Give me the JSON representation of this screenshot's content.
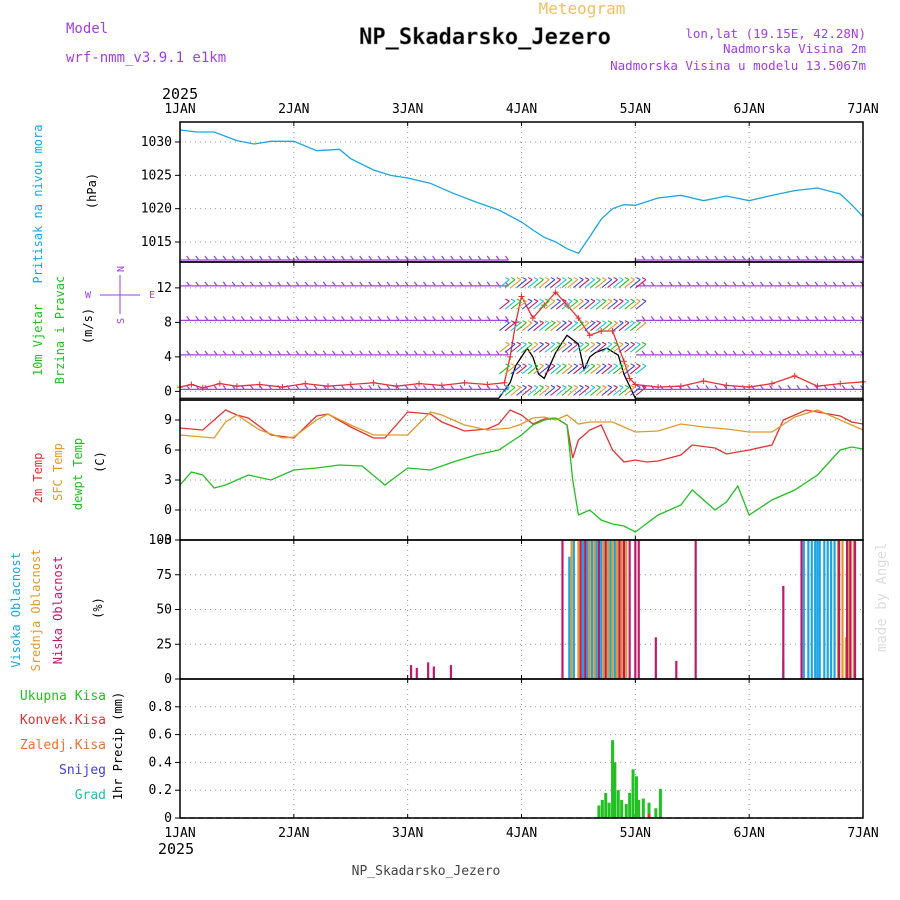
{
  "header": {
    "subtitle": "Meteogram",
    "title": "NP_Skadarsko_Jezero",
    "model_label": "Model",
    "model_name": "wrf-nmm_v3.9.1 e1km",
    "location_lonlat": "lon,lat (19.15E, 42.28N)",
    "elevation": "Nadmorska Visina 2m",
    "model_elevation": "Nadmorska Visina u modelu 13.5067m",
    "year_top": "2025",
    "year_bottom": "2025",
    "footer": "NP_Skadarsko_Jezero",
    "credit": "made by Angel"
  },
  "colors": {
    "pressure": "#1aa6e6",
    "wind_speed": "#000000",
    "gust": "#e63232",
    "temp2m": "#e63232",
    "sfc_temp": "#e09a28",
    "dewpoint": "#22c022",
    "cloud_high": "#1aa6e6",
    "cloud_mid": "#e09a28",
    "cloud_low": "#c0186a",
    "precip_total": "#22c022",
    "precip_conv": "#e63232",
    "precip_frozen": "#f07030",
    "snow": "#4040e0",
    "hail": "#20c0b0",
    "purple": "#a040e0"
  },
  "chart_data": [
    {
      "type": "line",
      "panel": "pressure",
      "ylabel": [
        "Pritisak na nivou mora",
        "(hPa)"
      ],
      "x_ticks": [
        "1JAN",
        "2JAN",
        "3JAN",
        "4JAN",
        "5JAN",
        "6JAN",
        "7JAN"
      ],
      "ylim": [
        1012,
        1033
      ],
      "y_ticks": [
        1015,
        1020,
        1025,
        1030
      ],
      "grid": true,
      "series": [
        {
          "x": [
            0,
            0.15,
            0.3,
            0.5,
            0.65,
            0.8,
            1.0,
            1.2,
            1.4,
            1.5,
            1.7,
            1.85,
            2.0,
            2.2,
            2.4,
            2.6,
            2.8,
            3.0,
            3.1,
            3.2,
            3.3,
            3.4,
            3.5,
            3.6,
            3.7,
            3.8,
            3.9,
            4.0,
            4.2,
            4.4,
            4.6,
            4.8,
            5.0,
            5.2,
            5.4,
            5.6,
            5.8,
            5.9,
            6.0
          ],
          "y": [
            1031.8,
            1031.5,
            1031.5,
            1030.2,
            1029.7,
            1030.1,
            1030.1,
            1028.7,
            1028.9,
            1027.5,
            1025.8,
            1025.0,
            1024.6,
            1023.8,
            1022.3,
            1021.0,
            1019.8,
            1018.0,
            1016.8,
            1015.7,
            1015.0,
            1014.0,
            1013.3,
            1015.8,
            1018.4,
            1020.0,
            1020.6,
            1020.5,
            1021.6,
            1022.0,
            1021.2,
            1021.9,
            1021.2,
            1022.0,
            1022.7,
            1023.1,
            1022.2,
            1020.6,
            1018.8
          ]
        }
      ]
    },
    {
      "type": "line",
      "panel": "wind",
      "ylabel": [
        "10m Vjetar",
        "Brzina i Pravac",
        "(m/s)"
      ],
      "compass": [
        "N",
        "S",
        "E",
        "W"
      ],
      "ylim": [
        -1,
        15
      ],
      "y_ticks": [
        0,
        4,
        8,
        12
      ],
      "grid": true,
      "series": [
        {
          "name": "wind_speed",
          "x": [
            0,
            0.5,
            1.0,
            1.5,
            2.0,
            2.5,
            2.8,
            2.9,
            2.95,
            3.0,
            3.05,
            3.1,
            3.15,
            3.2,
            3.3,
            3.4,
            3.5,
            3.55,
            3.6,
            3.65,
            3.75,
            3.85,
            3.9,
            4.0,
            4.5,
            5.0,
            5.5,
            6.0
          ],
          "y": [
            -0.8,
            -0.8,
            -0.8,
            -0.8,
            -0.8,
            -0.8,
            -0.8,
            1.0,
            3.0,
            4.0,
            5.0,
            4.0,
            2.0,
            1.5,
            4.5,
            6.5,
            5.5,
            2.5,
            4.0,
            4.5,
            5.0,
            4.2,
            2.0,
            -0.8,
            -0.8,
            -0.8,
            -0.8,
            -0.8
          ]
        },
        {
          "name": "gust",
          "x": [
            0,
            0.1,
            0.2,
            0.35,
            0.5,
            0.7,
            0.9,
            1.1,
            1.3,
            1.5,
            1.7,
            1.9,
            2.1,
            2.3,
            2.5,
            2.7,
            2.85,
            2.9,
            2.95,
            3.0,
            3.1,
            3.2,
            3.3,
            3.4,
            3.5,
            3.6,
            3.7,
            3.8,
            3.9,
            3.95,
            4.0,
            4.2,
            4.4,
            4.6,
            4.8,
            5.0,
            5.2,
            5.4,
            5.6,
            5.8,
            6.0
          ],
          "y": [
            0.5,
            0.8,
            0.4,
            0.9,
            0.6,
            0.8,
            0.5,
            0.9,
            0.6,
            0.8,
            1.0,
            0.6,
            0.9,
            0.7,
            1.0,
            0.8,
            1.0,
            4.0,
            8.0,
            11.0,
            8.5,
            10.0,
            11.5,
            10.0,
            8.5,
            6.5,
            7.0,
            7.0,
            3.5,
            1.5,
            0.8,
            0.5,
            0.6,
            1.2,
            0.7,
            0.5,
            0.9,
            1.8,
            0.6,
            0.9,
            1.1
          ]
        }
      ]
    },
    {
      "type": "line",
      "panel": "temperature",
      "ylabel": [
        "2m Temp",
        "SFC Temp",
        "dewpt Temp",
        "(C)"
      ],
      "ylim": [
        -3,
        11
      ],
      "y_ticks": [
        -3,
        0,
        3,
        6,
        9
      ],
      "grid": true,
      "series": [
        {
          "name": "2m Temp",
          "x": [
            0,
            0.2,
            0.4,
            0.5,
            0.6,
            0.8,
            1.0,
            1.2,
            1.3,
            1.5,
            1.7,
            1.8,
            2.0,
            2.2,
            2.3,
            2.5,
            2.7,
            2.8,
            2.9,
            3.0,
            3.1,
            3.2,
            3.3,
            3.4,
            3.45,
            3.5,
            3.6,
            3.7,
            3.8,
            3.9,
            4.0,
            4.1,
            4.2,
            4.4,
            4.5,
            4.7,
            4.8,
            5.0,
            5.2,
            5.3,
            5.5,
            5.7,
            5.8,
            5.9,
            6.0
          ],
          "y": [
            8.2,
            8.0,
            10.0,
            9.5,
            9.2,
            7.5,
            7.2,
            9.4,
            9.6,
            8.3,
            7.2,
            7.2,
            9.8,
            9.6,
            8.8,
            7.9,
            8.1,
            8.6,
            10.0,
            9.5,
            8.6,
            9.1,
            9.2,
            8.5,
            5.2,
            7.0,
            8.0,
            8.5,
            6.0,
            4.8,
            5.0,
            4.8,
            4.9,
            5.5,
            6.5,
            6.2,
            5.6,
            6.0,
            6.5,
            9.0,
            10.0,
            9.6,
            9.4,
            8.8,
            8.6
          ]
        },
        {
          "name": "SFC Temp",
          "x": [
            0,
            0.3,
            0.4,
            0.5,
            0.7,
            0.9,
            1.0,
            1.2,
            1.3,
            1.5,
            1.7,
            2.0,
            2.2,
            2.3,
            2.5,
            2.7,
            2.9,
            3.0,
            3.1,
            3.2,
            3.3,
            3.4,
            3.5,
            3.6,
            3.8,
            4.0,
            4.2,
            4.4,
            4.6,
            4.8,
            5.0,
            5.2,
            5.4,
            5.6,
            5.8,
            6.0
          ],
          "y": [
            7.5,
            7.2,
            8.8,
            9.5,
            8.0,
            7.2,
            7.3,
            9.0,
            9.6,
            8.5,
            7.5,
            7.5,
            9.8,
            9.5,
            8.5,
            8.0,
            8.2,
            8.6,
            9.2,
            9.3,
            9.0,
            9.5,
            8.6,
            8.8,
            8.8,
            7.8,
            7.9,
            8.6,
            8.3,
            8.1,
            7.8,
            7.8,
            9.3,
            10.0,
            9.0,
            8.0
          ]
        },
        {
          "name": "dewpt Temp",
          "x": [
            0,
            0.1,
            0.2,
            0.3,
            0.4,
            0.6,
            0.8,
            1.0,
            1.2,
            1.4,
            1.6,
            1.8,
            2.0,
            2.2,
            2.4,
            2.6,
            2.8,
            3.0,
            3.1,
            3.2,
            3.3,
            3.4,
            3.45,
            3.5,
            3.6,
            3.7,
            3.8,
            3.9,
            4.0,
            4.2,
            4.4,
            4.5,
            4.7,
            4.8,
            4.9,
            5.0,
            5.2,
            5.4,
            5.6,
            5.8,
            5.9,
            6.0
          ],
          "y": [
            2.5,
            3.8,
            3.5,
            2.2,
            2.5,
            3.5,
            3.0,
            4.0,
            4.2,
            4.5,
            4.4,
            2.5,
            4.2,
            4.0,
            4.8,
            5.5,
            6.0,
            7.5,
            8.5,
            9.0,
            9.2,
            8.5,
            3.0,
            -0.5,
            0.0,
            -1.0,
            -1.4,
            -1.6,
            -2.2,
            -0.5,
            0.5,
            2.0,
            0.0,
            0.8,
            2.4,
            -0.5,
            1.0,
            2.0,
            3.5,
            6.0,
            6.3,
            6.1
          ]
        }
      ]
    },
    {
      "type": "bar",
      "panel": "cloud",
      "ylabel": [
        "Visoka Oblacnost",
        "Srednja Oblacnost",
        "Niska Oblacnost",
        "(%)"
      ],
      "ylim": [
        0,
        100
      ],
      "y_ticks": [
        0,
        25,
        50,
        75,
        100
      ],
      "grid": true,
      "series": [
        {
          "name": "Visoka Oblacnost",
          "x": [
            3.42,
            3.46,
            3.54,
            3.58,
            3.62,
            3.66,
            3.7,
            3.78,
            3.82,
            5.3,
            5.48,
            5.52,
            5.55,
            5.58,
            5.6,
            5.62,
            5.66,
            5.69,
            5.72,
            5.75
          ],
          "values": [
            88,
            100,
            100,
            100,
            100,
            100,
            100,
            100,
            100,
            14,
            100,
            100,
            100,
            100,
            100,
            100,
            100,
            100,
            100,
            100
          ]
        },
        {
          "name": "Srednja Oblacnost",
          "x": [
            3.44,
            3.5,
            3.56,
            3.6,
            3.64,
            3.68,
            3.72,
            3.76,
            3.8,
            3.84,
            3.88,
            3.92,
            5.78,
            5.82,
            5.85,
            5.88,
            5.92
          ],
          "values": [
            100,
            100,
            100,
            100,
            100,
            100,
            100,
            100,
            100,
            100,
            100,
            100,
            100,
            100,
            30,
            100,
            100
          ]
        },
        {
          "name": "Niska Oblacnost",
          "x": [
            2.03,
            2.08,
            2.18,
            2.23,
            2.38,
            3.36,
            3.52,
            3.56,
            3.68,
            3.74,
            3.86,
            3.9,
            3.95,
            4.0,
            4.03,
            4.18,
            4.36,
            4.53,
            5.3,
            5.46,
            5.79,
            5.86,
            5.89,
            5.93
          ],
          "values": [
            10,
            8,
            12,
            9,
            10,
            100,
            100,
            100,
            100,
            100,
            100,
            100,
            100,
            100,
            100,
            30,
            13,
            100,
            67,
            100,
            100,
            100,
            100,
            100
          ]
        }
      ]
    },
    {
      "type": "bar",
      "panel": "precip",
      "ylabel": [
        "1hr Precip (mm)"
      ],
      "legend": [
        "Ukupna Kisa",
        "Konvek.Kisa",
        "Zaledj.Kisa",
        "Snijeg",
        "Grad"
      ],
      "ylim": [
        0,
        1.0
      ],
      "y_ticks": [
        0,
        0.2,
        0.4,
        0.6,
        0.8
      ],
      "grid": true,
      "series": [
        {
          "name": "Ukupna Kisa",
          "x": [
            3.68,
            3.71,
            3.74,
            3.77,
            3.8,
            3.82,
            3.85,
            3.88,
            3.92,
            3.95,
            3.98,
            4.01,
            4.03,
            4.07,
            4.12,
            4.18,
            4.22
          ],
          "values": [
            0.09,
            0.13,
            0.18,
            0.11,
            0.56,
            0.4,
            0.2,
            0.13,
            0.1,
            0.18,
            0.35,
            0.3,
            0.13,
            0.14,
            0.11,
            0.07,
            0.21
          ]
        },
        {
          "name": "Konvek.Kisa",
          "x": [
            4.12
          ],
          "values": [
            0.03
          ]
        }
      ]
    }
  ]
}
